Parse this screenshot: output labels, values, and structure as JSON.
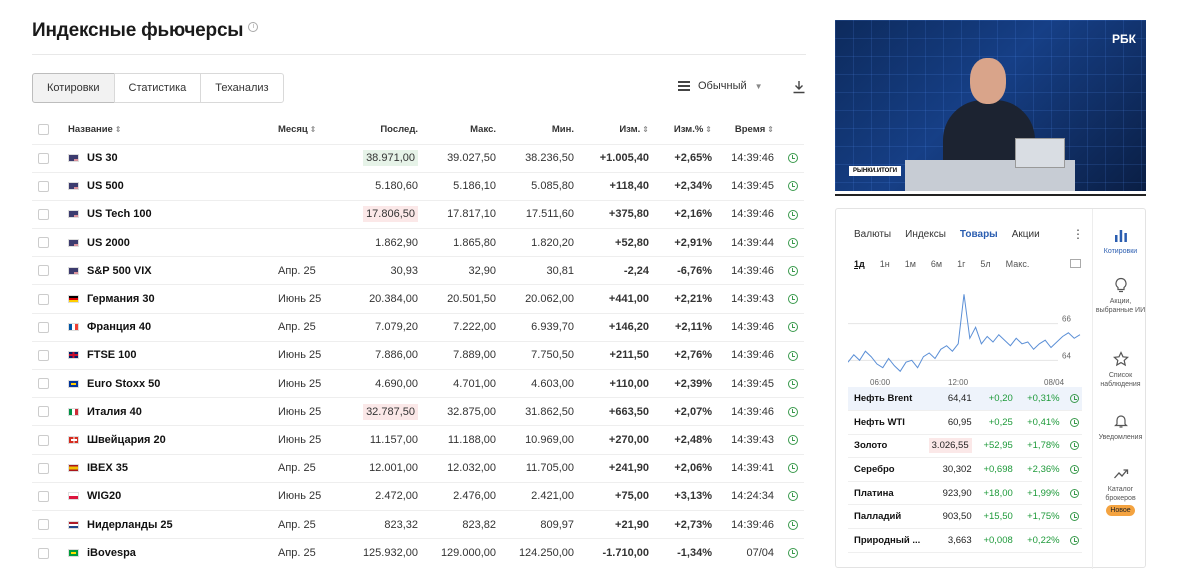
{
  "page": {
    "title": "Индексные фьючерсы"
  },
  "tabs": [
    "Котировки",
    "Статистика",
    "Теханализ"
  ],
  "view": {
    "label": "Обычный"
  },
  "columns": {
    "name": "Название",
    "month": "Месяц",
    "last": "Послед.",
    "high": "Макс.",
    "low": "Мин.",
    "chg": "Изм.",
    "chg_pct": "Изм.%",
    "time": "Время"
  },
  "rows": [
    {
      "flag": "us",
      "name": "US 30",
      "month": "",
      "last": "38.971,00",
      "last_hl": "green",
      "high": "39.027,50",
      "low": "38.236,50",
      "chg": "+1.005,40",
      "chg_pct": "+2,65%",
      "time": "14:39:46",
      "dir": "pos"
    },
    {
      "flag": "us",
      "name": "US 500",
      "month": "",
      "last": "5.180,60",
      "last_hl": "",
      "high": "5.186,10",
      "low": "5.085,80",
      "chg": "+118,40",
      "chg_pct": "+2,34%",
      "time": "14:39:45",
      "dir": "pos"
    },
    {
      "flag": "us",
      "name": "US Tech 100",
      "month": "",
      "last": "17.806,50",
      "last_hl": "red",
      "high": "17.817,10",
      "low": "17.511,60",
      "chg": "+375,80",
      "chg_pct": "+2,16%",
      "time": "14:39:46",
      "dir": "pos"
    },
    {
      "flag": "us",
      "name": "US 2000",
      "month": "",
      "last": "1.862,90",
      "last_hl": "",
      "high": "1.865,80",
      "low": "1.820,20",
      "chg": "+52,80",
      "chg_pct": "+2,91%",
      "time": "14:39:44",
      "dir": "pos"
    },
    {
      "flag": "us",
      "name": "S&P 500 VIX",
      "month": "Апр. 25",
      "last": "30,93",
      "last_hl": "",
      "high": "32,90",
      "low": "30,81",
      "chg": "-2,24",
      "chg_pct": "-6,76%",
      "time": "14:39:46",
      "dir": "neg"
    },
    {
      "flag": "de",
      "name": "Германия 30",
      "month": "Июнь 25",
      "last": "20.384,00",
      "last_hl": "",
      "high": "20.501,50",
      "low": "20.062,00",
      "chg": "+441,00",
      "chg_pct": "+2,21%",
      "time": "14:39:43",
      "dir": "pos"
    },
    {
      "flag": "fr",
      "name": "Франция 40",
      "month": "Апр. 25",
      "last": "7.079,20",
      "last_hl": "",
      "high": "7.222,00",
      "low": "6.939,70",
      "chg": "+146,20",
      "chg_pct": "+2,11%",
      "time": "14:39:46",
      "dir": "pos"
    },
    {
      "flag": "gb",
      "name": "FTSE 100",
      "month": "Июнь 25",
      "last": "7.886,00",
      "last_hl": "",
      "high": "7.889,00",
      "low": "7.750,50",
      "chg": "+211,50",
      "chg_pct": "+2,76%",
      "time": "14:39:46",
      "dir": "pos"
    },
    {
      "flag": "eu",
      "name": "Euro Stoxx 50",
      "month": "Июнь 25",
      "last": "4.690,00",
      "last_hl": "",
      "high": "4.701,00",
      "low": "4.603,00",
      "chg": "+110,00",
      "chg_pct": "+2,39%",
      "time": "14:39:45",
      "dir": "pos"
    },
    {
      "flag": "it",
      "name": "Италия 40",
      "month": "Июнь 25",
      "last": "32.787,50",
      "last_hl": "red",
      "high": "32.875,00",
      "low": "31.862,50",
      "chg": "+663,50",
      "chg_pct": "+2,07%",
      "time": "14:39:46",
      "dir": "pos"
    },
    {
      "flag": "ch",
      "name": "Швейцария 20",
      "month": "Июнь 25",
      "last": "11.157,00",
      "last_hl": "",
      "high": "11.188,00",
      "low": "10.969,00",
      "chg": "+270,00",
      "chg_pct": "+2,48%",
      "time": "14:39:43",
      "dir": "pos"
    },
    {
      "flag": "es",
      "name": "IBEX 35",
      "month": "Апр. 25",
      "last": "12.001,00",
      "last_hl": "",
      "high": "12.032,00",
      "low": "11.705,00",
      "chg": "+241,90",
      "chg_pct": "+2,06%",
      "time": "14:39:41",
      "dir": "pos"
    },
    {
      "flag": "pl",
      "name": "WIG20",
      "month": "Июнь 25",
      "last": "2.472,00",
      "last_hl": "",
      "high": "2.476,00",
      "low": "2.421,00",
      "chg": "+75,00",
      "chg_pct": "+3,13%",
      "time": "14:24:34",
      "dir": "pos"
    },
    {
      "flag": "nl",
      "name": "Нидерланды 25",
      "month": "Апр. 25",
      "last": "823,32",
      "last_hl": "",
      "high": "823,82",
      "low": "809,97",
      "chg": "+21,90",
      "chg_pct": "+2,73%",
      "time": "14:39:46",
      "dir": "pos"
    },
    {
      "flag": "br",
      "name": "iBovespa",
      "month": "Апр. 25",
      "last": "125.932,00",
      "last_hl": "",
      "high": "129.000,00",
      "low": "124.250,00",
      "chg": "-1.710,00",
      "chg_pct": "-1,34%",
      "time": "07/04",
      "dir": "neg"
    }
  ],
  "video": {
    "brand": "РБК",
    "caption": "РЫНКИ.ИТОГИ"
  },
  "widget": {
    "tabs": [
      "Валюты",
      "Индексы",
      "Товары",
      "Акции"
    ],
    "active_tab": "Товары",
    "periods": [
      "1д",
      "1н",
      "1м",
      "6м",
      "1г",
      "5л",
      "Макс."
    ],
    "active_period": "1д",
    "chart_data": {
      "type": "line",
      "x_labels": [
        "06:00",
        "12:00",
        "08/04"
      ],
      "y_labels": [
        "66",
        "64"
      ],
      "values": [
        63.9,
        64.3,
        64.0,
        64.5,
        64.2,
        63.8,
        63.6,
        64.1,
        63.7,
        63.4,
        63.9,
        64.0,
        63.6,
        64.2,
        64.4,
        64.1,
        64.6,
        64.8,
        64.5,
        64.9,
        67.6,
        65.2,
        65.8,
        64.9,
        65.3,
        65.0,
        65.4,
        65.1,
        64.8,
        65.2,
        64.9,
        65.0,
        64.6,
        64.9,
        65.1,
        64.7,
        65.0,
        65.3,
        65.5,
        65.2,
        65.4
      ]
    },
    "quotes": [
      {
        "name": "Нефть Brent",
        "last": "64,41",
        "chg": "+0,20",
        "pct": "+0,31%",
        "sel": true,
        "hl": ""
      },
      {
        "name": "Нефть WTI",
        "last": "60,95",
        "chg": "+0,25",
        "pct": "+0,41%",
        "sel": false,
        "hl": ""
      },
      {
        "name": "Золото",
        "last": "3.026,55",
        "chg": "+52,95",
        "pct": "+1,78%",
        "sel": false,
        "hl": "red"
      },
      {
        "name": "Серебро",
        "last": "30,302",
        "chg": "+0,698",
        "pct": "+2,36%",
        "sel": false,
        "hl": ""
      },
      {
        "name": "Платина",
        "last": "923,90",
        "chg": "+18,00",
        "pct": "+1,99%",
        "sel": false,
        "hl": ""
      },
      {
        "name": "Палладий",
        "last": "903,50",
        "chg": "+15,50",
        "pct": "+1,75%",
        "sel": false,
        "hl": ""
      },
      {
        "name": "Природный ...",
        "last": "3,663",
        "chg": "+0,008",
        "pct": "+0,22%",
        "sel": false,
        "hl": ""
      }
    ],
    "side": [
      {
        "label": "Котировки",
        "icon": "bar-chart-icon",
        "active": true,
        "badge": ""
      },
      {
        "label": "Акции, выбранные ИИ",
        "icon": "lightbulb-icon",
        "active": false,
        "badge": ""
      },
      {
        "label": "Список наблюдения",
        "icon": "star-icon",
        "active": false,
        "badge": ""
      },
      {
        "label": "Уведомления",
        "icon": "bell-icon",
        "active": false,
        "badge": ""
      },
      {
        "label": "Каталог брокеров",
        "icon": "trend-icon",
        "active": false,
        "badge": "Новое"
      }
    ]
  }
}
